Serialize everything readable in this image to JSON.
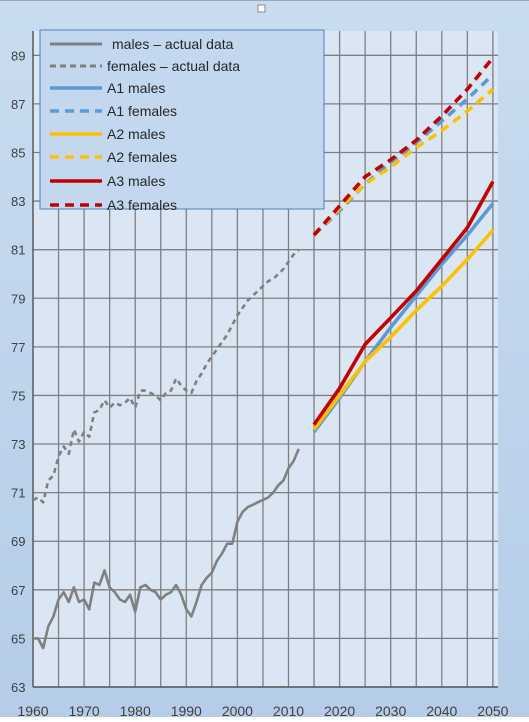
{
  "chart_data": {
    "type": "line",
    "title": "",
    "xlabel": "",
    "ylabel": "",
    "xlim": [
      1960,
      2051
    ],
    "ylim": [
      63,
      90
    ],
    "x_ticks": [
      1960,
      1970,
      1980,
      1990,
      2000,
      2010,
      2020,
      2030,
      2040,
      2050
    ],
    "x_tick_labels": [
      "1960",
      "1970",
      "1980",
      "1990",
      "2000",
      "2010",
      "2020",
      "2030",
      "2040",
      "2050"
    ],
    "y_ticks": [
      63,
      65,
      67,
      69,
      71,
      73,
      75,
      77,
      79,
      81,
      83,
      85,
      87,
      89
    ],
    "y_tick_labels": [
      "63",
      "65",
      "67",
      "69",
      "71",
      "73",
      "75",
      "77",
      "79",
      "81",
      "83",
      "85",
      "87",
      "89"
    ],
    "grid": true,
    "legend_position": "top-left",
    "series": [
      {
        "name": "males – actual data",
        "color": "#808080",
        "dash": "solid",
        "x": [
          1960,
          1961,
          1962,
          1963,
          1964,
          1965,
          1966,
          1967,
          1968,
          1969,
          1970,
          1971,
          1972,
          1973,
          1974,
          1975,
          1976,
          1977,
          1978,
          1979,
          1980,
          1981,
          1982,
          1983,
          1984,
          1985,
          1986,
          1987,
          1988,
          1989,
          1990,
          1991,
          1992,
          1993,
          1994,
          1995,
          1996,
          1997,
          1998,
          1999,
          2000,
          2001,
          2002,
          2003,
          2004,
          2005,
          2006,
          2007,
          2008,
          2009,
          2010,
          2011,
          2012
        ],
        "values": [
          65.0,
          65.0,
          64.6,
          65.5,
          65.9,
          66.6,
          66.9,
          66.5,
          67.1,
          66.5,
          66.6,
          66.2,
          67.3,
          67.2,
          67.8,
          67.1,
          66.9,
          66.6,
          66.5,
          66.8,
          66.1,
          67.1,
          67.2,
          67.0,
          66.9,
          66.6,
          66.8,
          66.9,
          67.2,
          66.8,
          66.2,
          65.9,
          66.5,
          67.2,
          67.5,
          67.7,
          68.2,
          68.5,
          68.9,
          68.9,
          69.8,
          70.2,
          70.4,
          70.5,
          70.6,
          70.7,
          70.8,
          71.0,
          71.3,
          71.5,
          72.0,
          72.3,
          72.8
        ]
      },
      {
        "name": "females – actual data",
        "color": "#808080",
        "dash": "dashed",
        "x": [
          1960,
          1961,
          1962,
          1963,
          1964,
          1965,
          1966,
          1967,
          1968,
          1969,
          1970,
          1971,
          1972,
          1973,
          1974,
          1975,
          1976,
          1977,
          1978,
          1979,
          1980,
          1981,
          1982,
          1983,
          1984,
          1985,
          1986,
          1987,
          1988,
          1989,
          1990,
          1991,
          1992,
          1993,
          1994,
          1995,
          1996,
          1997,
          1998,
          1999,
          2000,
          2001,
          2002,
          2003,
          2004,
          2005,
          2006,
          2007,
          2008,
          2009,
          2010,
          2011,
          2012
        ],
        "values": [
          70.7,
          70.8,
          70.6,
          71.5,
          71.7,
          72.5,
          72.9,
          72.6,
          73.6,
          73.1,
          73.5,
          73.3,
          74.3,
          74.4,
          74.8,
          74.5,
          74.7,
          74.6,
          74.7,
          74.9,
          74.5,
          75.2,
          75.2,
          75.1,
          75.0,
          74.8,
          75.1,
          75.2,
          75.7,
          75.4,
          75.2,
          75.1,
          75.6,
          75.9,
          76.3,
          76.6,
          76.9,
          77.2,
          77.5,
          77.9,
          78.3,
          78.6,
          78.9,
          79.1,
          79.3,
          79.5,
          79.7,
          79.8,
          80.0,
          80.2,
          80.5,
          80.8,
          81.0
        ]
      },
      {
        "name": "A1 males",
        "color": "#5b9bd5",
        "dash": "solid",
        "x": [
          2015,
          2020,
          2025,
          2030,
          2035,
          2040,
          2045,
          2050
        ],
        "values": [
          73.5,
          74.9,
          76.4,
          77.8,
          79.1,
          80.4,
          81.6,
          82.9
        ]
      },
      {
        "name": "A1 females",
        "color": "#5b9bd5",
        "dash": "dashed",
        "x": [
          2015,
          2020,
          2025,
          2030,
          2035,
          2040,
          2045,
          2050
        ],
        "values": [
          81.6,
          82.6,
          83.7,
          84.6,
          85.4,
          86.3,
          87.2,
          88.2
        ]
      },
      {
        "name": "A2 males",
        "color": "#ffc000",
        "dash": "solid",
        "x": [
          2015,
          2020,
          2025,
          2030,
          2035,
          2040,
          2045,
          2050
        ],
        "values": [
          73.6,
          75.0,
          76.4,
          77.4,
          78.5,
          79.5,
          80.6,
          81.8
        ]
      },
      {
        "name": "A2 females",
        "color": "#ffc000",
        "dash": "dashed",
        "x": [
          2015,
          2020,
          2025,
          2030,
          2035,
          2040,
          2045,
          2050
        ],
        "values": [
          81.6,
          82.7,
          83.7,
          84.4,
          85.2,
          85.9,
          86.7,
          87.6
        ]
      },
      {
        "name": "A3 males",
        "color": "#c00000",
        "dash": "solid",
        "x": [
          2015,
          2020,
          2025,
          2030,
          2035,
          2040,
          2045,
          2050
        ],
        "values": [
          73.8,
          75.3,
          77.1,
          78.2,
          79.3,
          80.6,
          81.9,
          83.8
        ]
      },
      {
        "name": "A3 females",
        "color": "#c00000",
        "dash": "dashed",
        "x": [
          2015,
          2020,
          2025,
          2030,
          2035,
          2040,
          2045,
          2050
        ],
        "values": [
          81.6,
          82.8,
          84.0,
          84.7,
          85.5,
          86.5,
          87.6,
          88.9
        ]
      }
    ]
  }
}
